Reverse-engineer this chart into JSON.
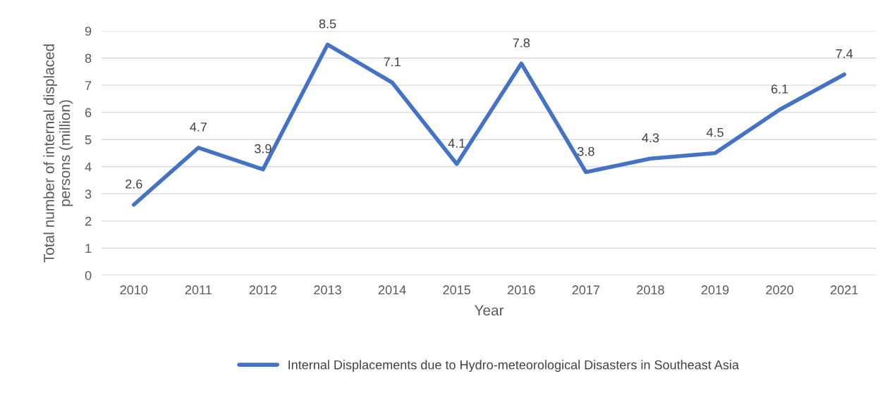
{
  "chart_data": {
    "type": "line",
    "xlabel": "Year",
    "ylabel": "Total number of internal displaced\npersons (million)",
    "categories": [
      "2010",
      "2011",
      "2012",
      "2013",
      "2014",
      "2015",
      "2016",
      "2017",
      "2018",
      "2019",
      "2020",
      "2021"
    ],
    "series": [
      {
        "name": "Internal Displacements due to Hydro-meteorological Disasters in Southeast Asia",
        "color": "#4472c4",
        "values": [
          2.6,
          4.7,
          3.9,
          8.5,
          7.1,
          4.1,
          7.8,
          3.8,
          4.3,
          4.5,
          6.1,
          7.4
        ]
      }
    ],
    "ylim": [
      0,
      9
    ],
    "yticks": [
      0,
      1,
      2,
      3,
      4,
      5,
      6,
      7,
      8,
      9
    ],
    "grid": "y",
    "legend": "bottom",
    "data_labels": true,
    "marker": "none",
    "line_style": "solid"
  }
}
